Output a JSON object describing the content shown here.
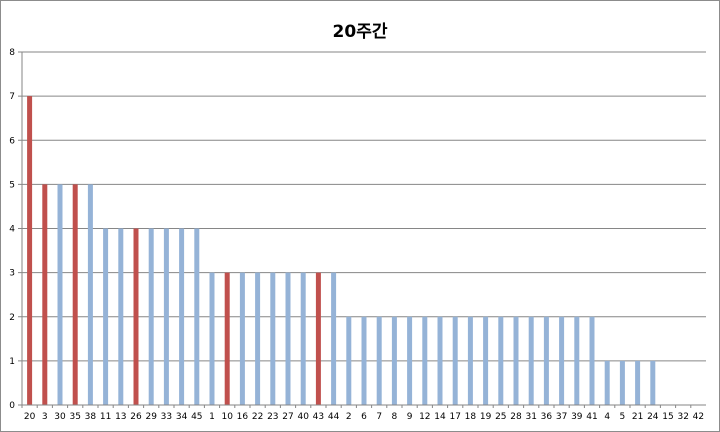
{
  "chart_data": {
    "type": "bar",
    "title": "20주간",
    "xlabel": "",
    "ylabel": "",
    "ylim": [
      0,
      8
    ],
    "yticks": [
      0,
      1,
      2,
      3,
      4,
      5,
      6,
      7,
      8
    ],
    "grid": true,
    "legend": "none",
    "categories": [
      "20",
      "3",
      "30",
      "35",
      "38",
      "11",
      "13",
      "26",
      "29",
      "33",
      "34",
      "45",
      "1",
      "10",
      "16",
      "22",
      "23",
      "27",
      "40",
      "43",
      "44",
      "2",
      "6",
      "7",
      "8",
      "9",
      "12",
      "14",
      "17",
      "18",
      "19",
      "25",
      "28",
      "31",
      "36",
      "37",
      "39",
      "41",
      "4",
      "5",
      "21",
      "24",
      "15",
      "32",
      "42"
    ],
    "values": [
      7,
      5,
      5,
      5,
      5,
      4,
      4,
      4,
      4,
      4,
      4,
      4,
      3,
      3,
      3,
      3,
      3,
      3,
      3,
      3,
      3,
      2,
      2,
      2,
      2,
      2,
      2,
      2,
      2,
      2,
      2,
      2,
      2,
      2,
      2,
      2,
      2,
      2,
      1,
      1,
      1,
      1,
      0,
      0,
      0
    ],
    "highlighted": [
      "20",
      "3",
      "35",
      "26",
      "10",
      "43"
    ],
    "colors": {
      "default": "#95b3d7",
      "highlight": "#c0504d",
      "grid": "#868686",
      "axis": "#868686"
    }
  }
}
